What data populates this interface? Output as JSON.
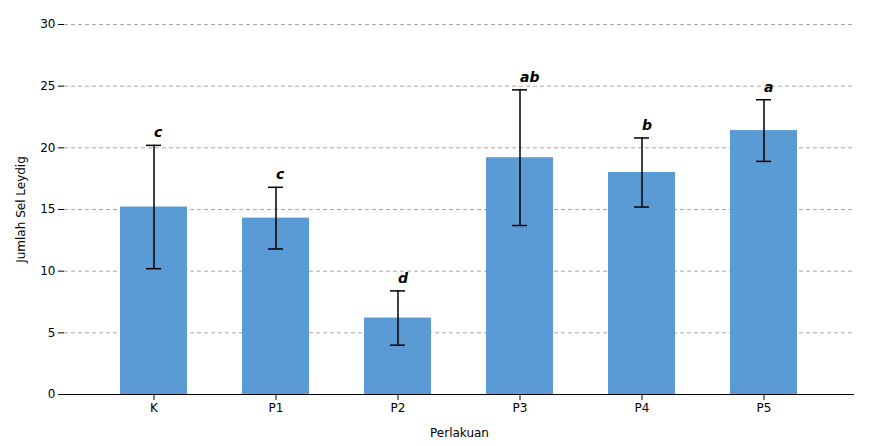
{
  "chart_data": {
    "type": "bar",
    "categories": [
      "K",
      "P1",
      "P2",
      "P3",
      "P4",
      "P5"
    ],
    "values": [
      15.2,
      14.3,
      6.2,
      19.2,
      18.0,
      21.4
    ],
    "errors": [
      5.0,
      2.5,
      2.2,
      5.5,
      2.8,
      2.5
    ],
    "annotations": [
      "c",
      "c",
      "d",
      "ab",
      "b",
      "a"
    ],
    "color": "#5B9BD5",
    "xlabel": "Perlakuan",
    "ylabel": "Jumlah Sel Leydig",
    "ylim": [
      0,
      30
    ],
    "yticks": [
      0,
      5,
      10,
      15,
      20,
      25,
      30
    ],
    "grid": true
  }
}
